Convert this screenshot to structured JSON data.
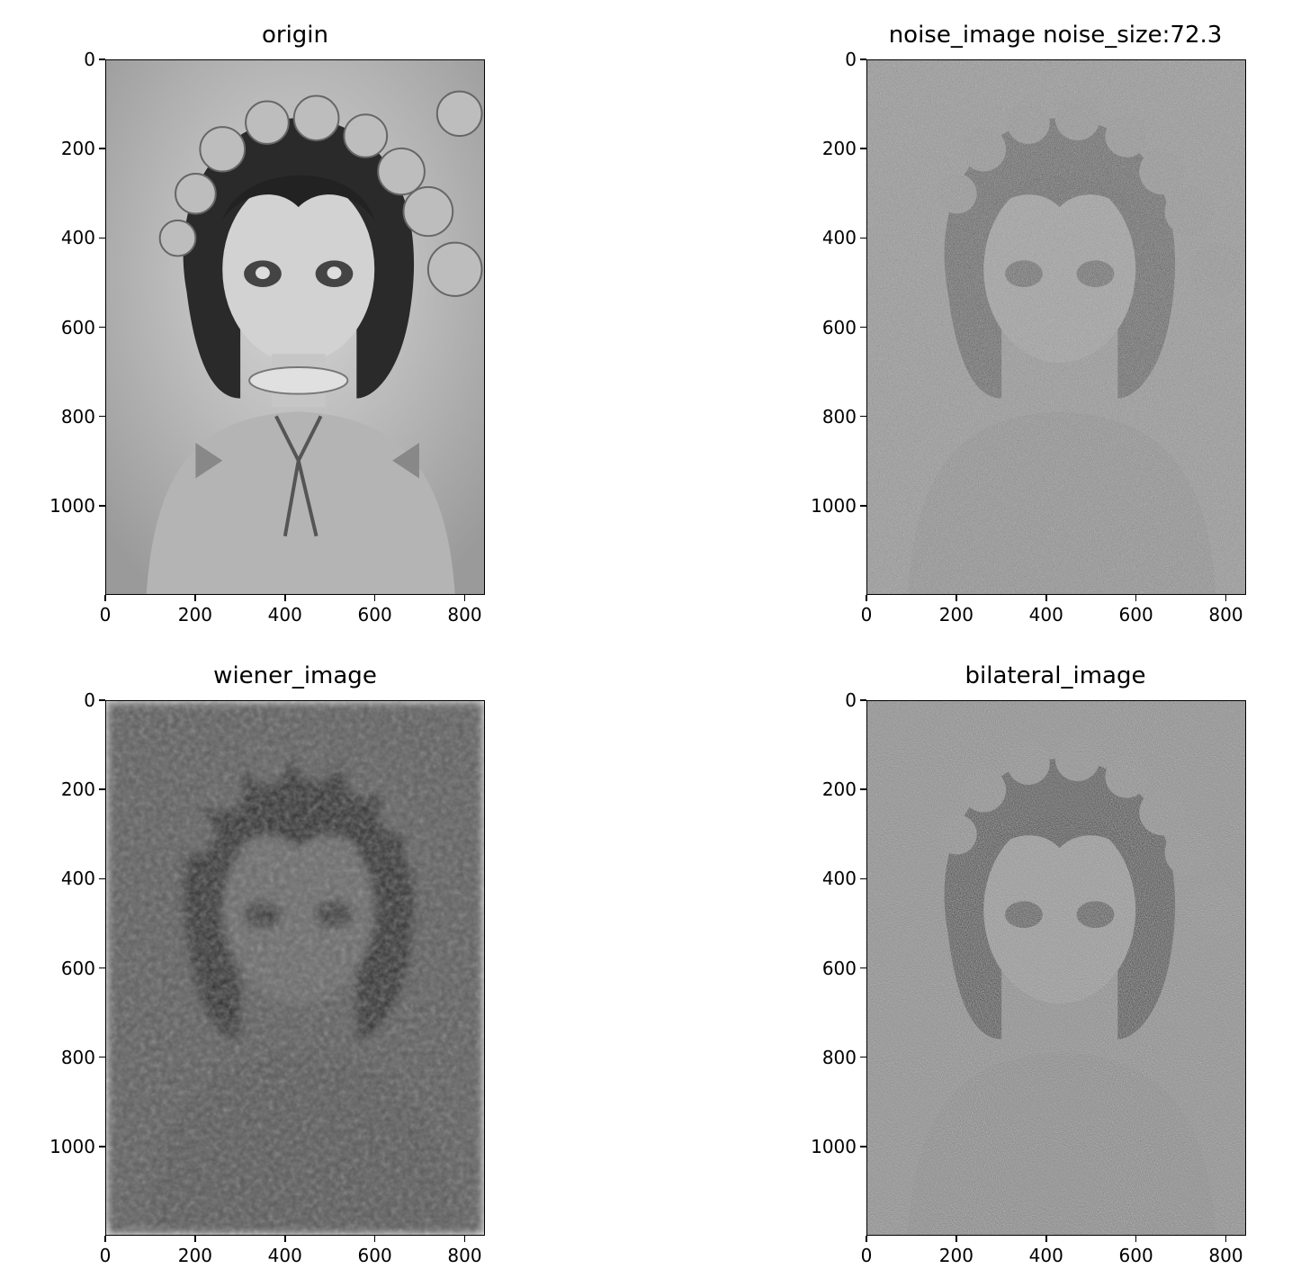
{
  "figure": {
    "panels": [
      {
        "id": "origin",
        "title": "origin",
        "xticks": [
          "0",
          "200",
          "400",
          "600",
          "800"
        ],
        "yticks": [
          "0",
          "200",
          "400",
          "600",
          "800",
          "1000"
        ],
        "tone": "origin"
      },
      {
        "id": "noise",
        "title": "noise_image noise_size:72.3",
        "xticks": [
          "0",
          "200",
          "400",
          "600",
          "800"
        ],
        "yticks": [
          "0",
          "200",
          "400",
          "600",
          "800",
          "1000"
        ],
        "tone": "noise"
      },
      {
        "id": "wiener",
        "title": "wiener_image",
        "xticks": [
          "0",
          "200",
          "400",
          "600",
          "800"
        ],
        "yticks": [
          "0",
          "200",
          "400",
          "600",
          "800",
          "1000"
        ],
        "tone": "wiener"
      },
      {
        "id": "bilateral",
        "title": "bilateral_image",
        "xticks": [
          "0",
          "200",
          "400",
          "600",
          "800"
        ],
        "yticks": [
          "0",
          "200",
          "400",
          "600",
          "800",
          "1000"
        ],
        "tone": "bilateral"
      }
    ],
    "axis_range": {
      "x": [
        0,
        845
      ],
      "y": [
        0,
        1200
      ]
    }
  }
}
